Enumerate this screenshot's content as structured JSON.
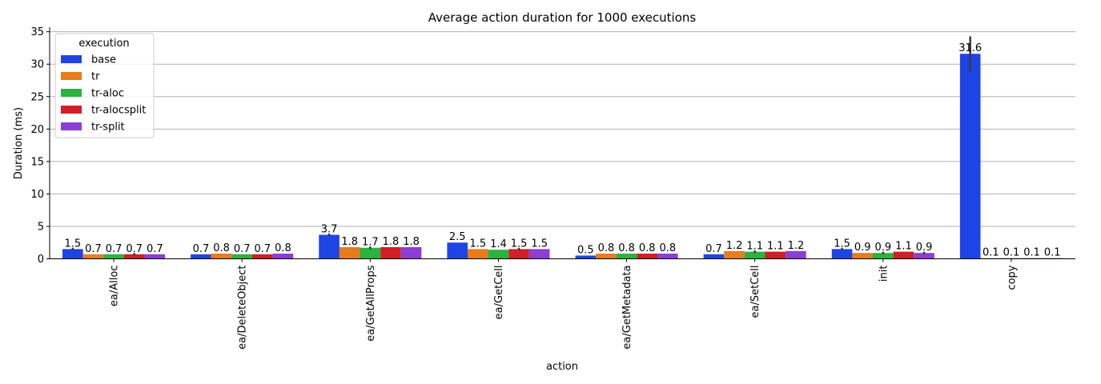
{
  "chart_data": {
    "type": "bar",
    "title": "Average action duration for 1000 executions",
    "xlabel": "action",
    "ylabel": "Duration (ms)",
    "ylim": [
      0,
      35.7
    ],
    "yticks": [
      0,
      5,
      10,
      15,
      20,
      25,
      30,
      35
    ],
    "grid": "y",
    "legend": {
      "title": "execution",
      "placement": "top-left"
    },
    "categories": [
      "ea/Alloc",
      "ea/DeleteObject",
      "ea/GetAllProps",
      "ea/GetCell",
      "ea/GetMetadata",
      "ea/SetCell",
      "init",
      "copy"
    ],
    "series": [
      {
        "name": "base",
        "color": "#1f44e6",
        "values": [
          1.5,
          0.7,
          3.7,
          2.5,
          0.5,
          0.7,
          1.5,
          31.6
        ],
        "labels": [
          "1.5",
          "0.7",
          "3.7",
          "2.5",
          "0.5",
          "0.7",
          "1.5",
          "31.6"
        ],
        "err_low": [
          1.3,
          null,
          3.5,
          null,
          null,
          null,
          1.3,
          28.8
        ],
        "err_high": [
          1.7,
          null,
          3.9,
          null,
          null,
          null,
          1.7,
          34.3
        ]
      },
      {
        "name": "tr",
        "color": "#e87b1c",
        "values": [
          0.7,
          0.8,
          1.8,
          1.5,
          0.8,
          1.2,
          0.9,
          0.1
        ],
        "labels": [
          "0.7",
          "0.8",
          "1.8",
          "1.5",
          "0.8",
          "1.2",
          "0.9",
          "0.1"
        ],
        "err_low": [
          null,
          null,
          null,
          null,
          null,
          null,
          null,
          null
        ],
        "err_high": [
          null,
          null,
          null,
          null,
          null,
          null,
          null,
          null
        ]
      },
      {
        "name": "tr-aloc",
        "color": "#2ab33f",
        "values": [
          0.7,
          0.7,
          1.7,
          1.4,
          0.8,
          1.1,
          0.9,
          0.1
        ],
        "labels": [
          "0.7",
          "0.7",
          "1.7",
          "1.4",
          "0.8",
          "1.1",
          "0.9",
          "0.1"
        ],
        "err_low": [
          null,
          null,
          1.5,
          null,
          null,
          0.9,
          0.7,
          null
        ],
        "err_high": [
          null,
          null,
          1.9,
          null,
          null,
          1.3,
          1.1,
          null
        ]
      },
      {
        "name": "tr-alocsplit",
        "color": "#d21e27",
        "values": [
          0.7,
          0.7,
          1.8,
          1.5,
          0.8,
          1.1,
          1.1,
          0.1
        ],
        "labels": [
          "0.7",
          "0.7",
          "1.8",
          "1.5",
          "0.8",
          "1.1",
          "1.1",
          "0.1"
        ],
        "err_low": [
          0.5,
          null,
          null,
          1.3,
          null,
          null,
          null,
          null
        ],
        "err_high": [
          0.9,
          null,
          null,
          1.7,
          null,
          null,
          null,
          null
        ]
      },
      {
        "name": "tr-split",
        "color": "#8b3fd4",
        "values": [
          0.7,
          0.8,
          1.8,
          1.5,
          0.8,
          1.2,
          0.9,
          0.1
        ],
        "labels": [
          "0.7",
          "0.8",
          "1.8",
          "1.5",
          "0.8",
          "1.2",
          "0.9",
          "0.1"
        ],
        "err_low": [
          null,
          null,
          null,
          null,
          null,
          null,
          0.7,
          null
        ],
        "err_high": [
          null,
          null,
          null,
          null,
          null,
          null,
          1.1,
          null
        ]
      }
    ]
  }
}
